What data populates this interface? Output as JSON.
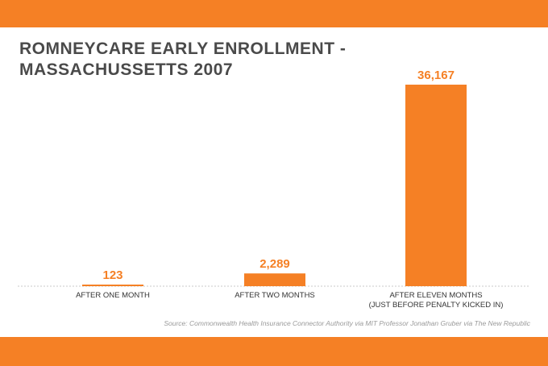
{
  "colors": {
    "accent": "#f58025",
    "title_text": "#4a4a4a",
    "axis_label_text": "#333333",
    "source_text": "#9a9a9a",
    "baseline": "#c8c8c8"
  },
  "chart_data": {
    "type": "bar",
    "title": "ROMNEYCARE EARLY ENROLLMENT - MASSACHUSSETTS 2007",
    "categories": [
      [
        "AFTER ONE MONTH"
      ],
      [
        "AFTER TWO MONTHS"
      ],
      [
        "AFTER ELEVEN MONTHS",
        "(JUST BEFORE PENALTY KICKED IN)"
      ]
    ],
    "values": [
      123,
      2289,
      36167
    ],
    "data_labels": [
      "123",
      "2,289",
      "36,167"
    ],
    "xlabel": "",
    "ylabel": "",
    "ylim": [
      0,
      36167
    ],
    "grid": false,
    "source": "Source: Commonwealth Health Insurance Connector Authority via MIT Professor Jonathan Gruber via The New Republic"
  }
}
